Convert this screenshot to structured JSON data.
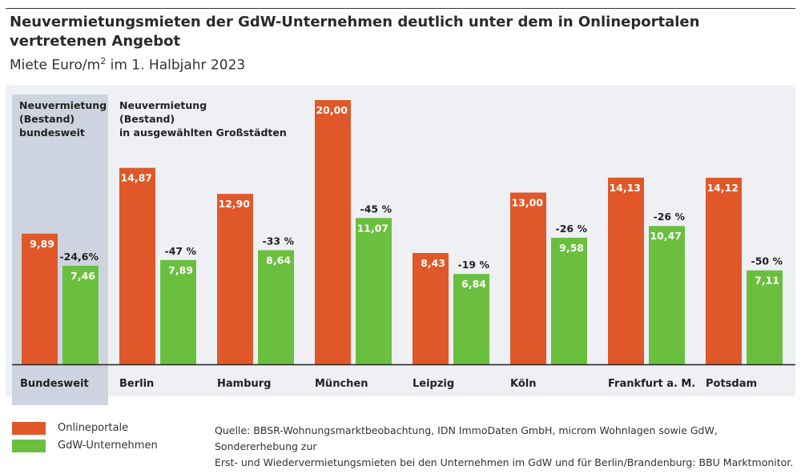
{
  "header": {
    "title": "Neuvermietungsmieten der GdW-Unternehmen deutlich unter dem in Onlineportalen vertretenen Angebot",
    "subtitle_pre": "Miete Euro/m",
    "subtitle_sup": "2",
    "subtitle_post": " im 1. Halbjahr 2023"
  },
  "notes": {
    "national": [
      "Neuvermietung",
      "(Bestand)",
      "bundesweit"
    ],
    "cities": [
      "Neuvermietung",
      "(Bestand)",
      "in ausgewählten Großstädten"
    ]
  },
  "chart_data": {
    "type": "bar",
    "title": "Miete Euro/m2 im 1. Halbjahr 2023",
    "categories": [
      "Bundesweit",
      "Berlin",
      "Hamburg",
      "München",
      "Leipzig",
      "Köln",
      "Frankfurt a. M.",
      "Potsdam"
    ],
    "series": [
      {
        "name": "Onlineportale",
        "color": "#e0582a",
        "values": [
          9.89,
          14.87,
          12.9,
          20.0,
          8.43,
          13.0,
          14.13,
          14.12
        ],
        "labels": [
          "9,89",
          "14,87",
          "12,90",
          "20,00",
          "8,43",
          "13,00",
          "14,13",
          "14,12"
        ]
      },
      {
        "name": "GdW-Unternehmen",
        "color": "#6bbf3f",
        "values": [
          7.46,
          7.89,
          8.64,
          11.07,
          6.84,
          9.58,
          10.47,
          7.11
        ],
        "labels": [
          "7,46",
          "7,89",
          "8,64",
          "11,07",
          "6,84",
          "9,58",
          "10,47",
          "7,11"
        ]
      }
    ],
    "differences": [
      "-24,6%",
      "-47 %",
      "-33 %",
      "-45 %",
      "-19 %",
      "-26 %",
      "-26 %",
      "-50 %"
    ],
    "ylim": [
      0,
      20
    ],
    "grid": false,
    "legend": "bottom-left"
  },
  "source": {
    "line1": "Quelle: BBSR-Wohnungsmarktbeobachtung, IDN ImmoDaten GmbH, microm Wohnlagen sowie GdW, Sondererhebung zur",
    "line2": "Erst- und Wiedervermietungsmieten bei den Unternehmen im GdW und für Berlin/Brandenburg: BBU Marktmonitor."
  }
}
